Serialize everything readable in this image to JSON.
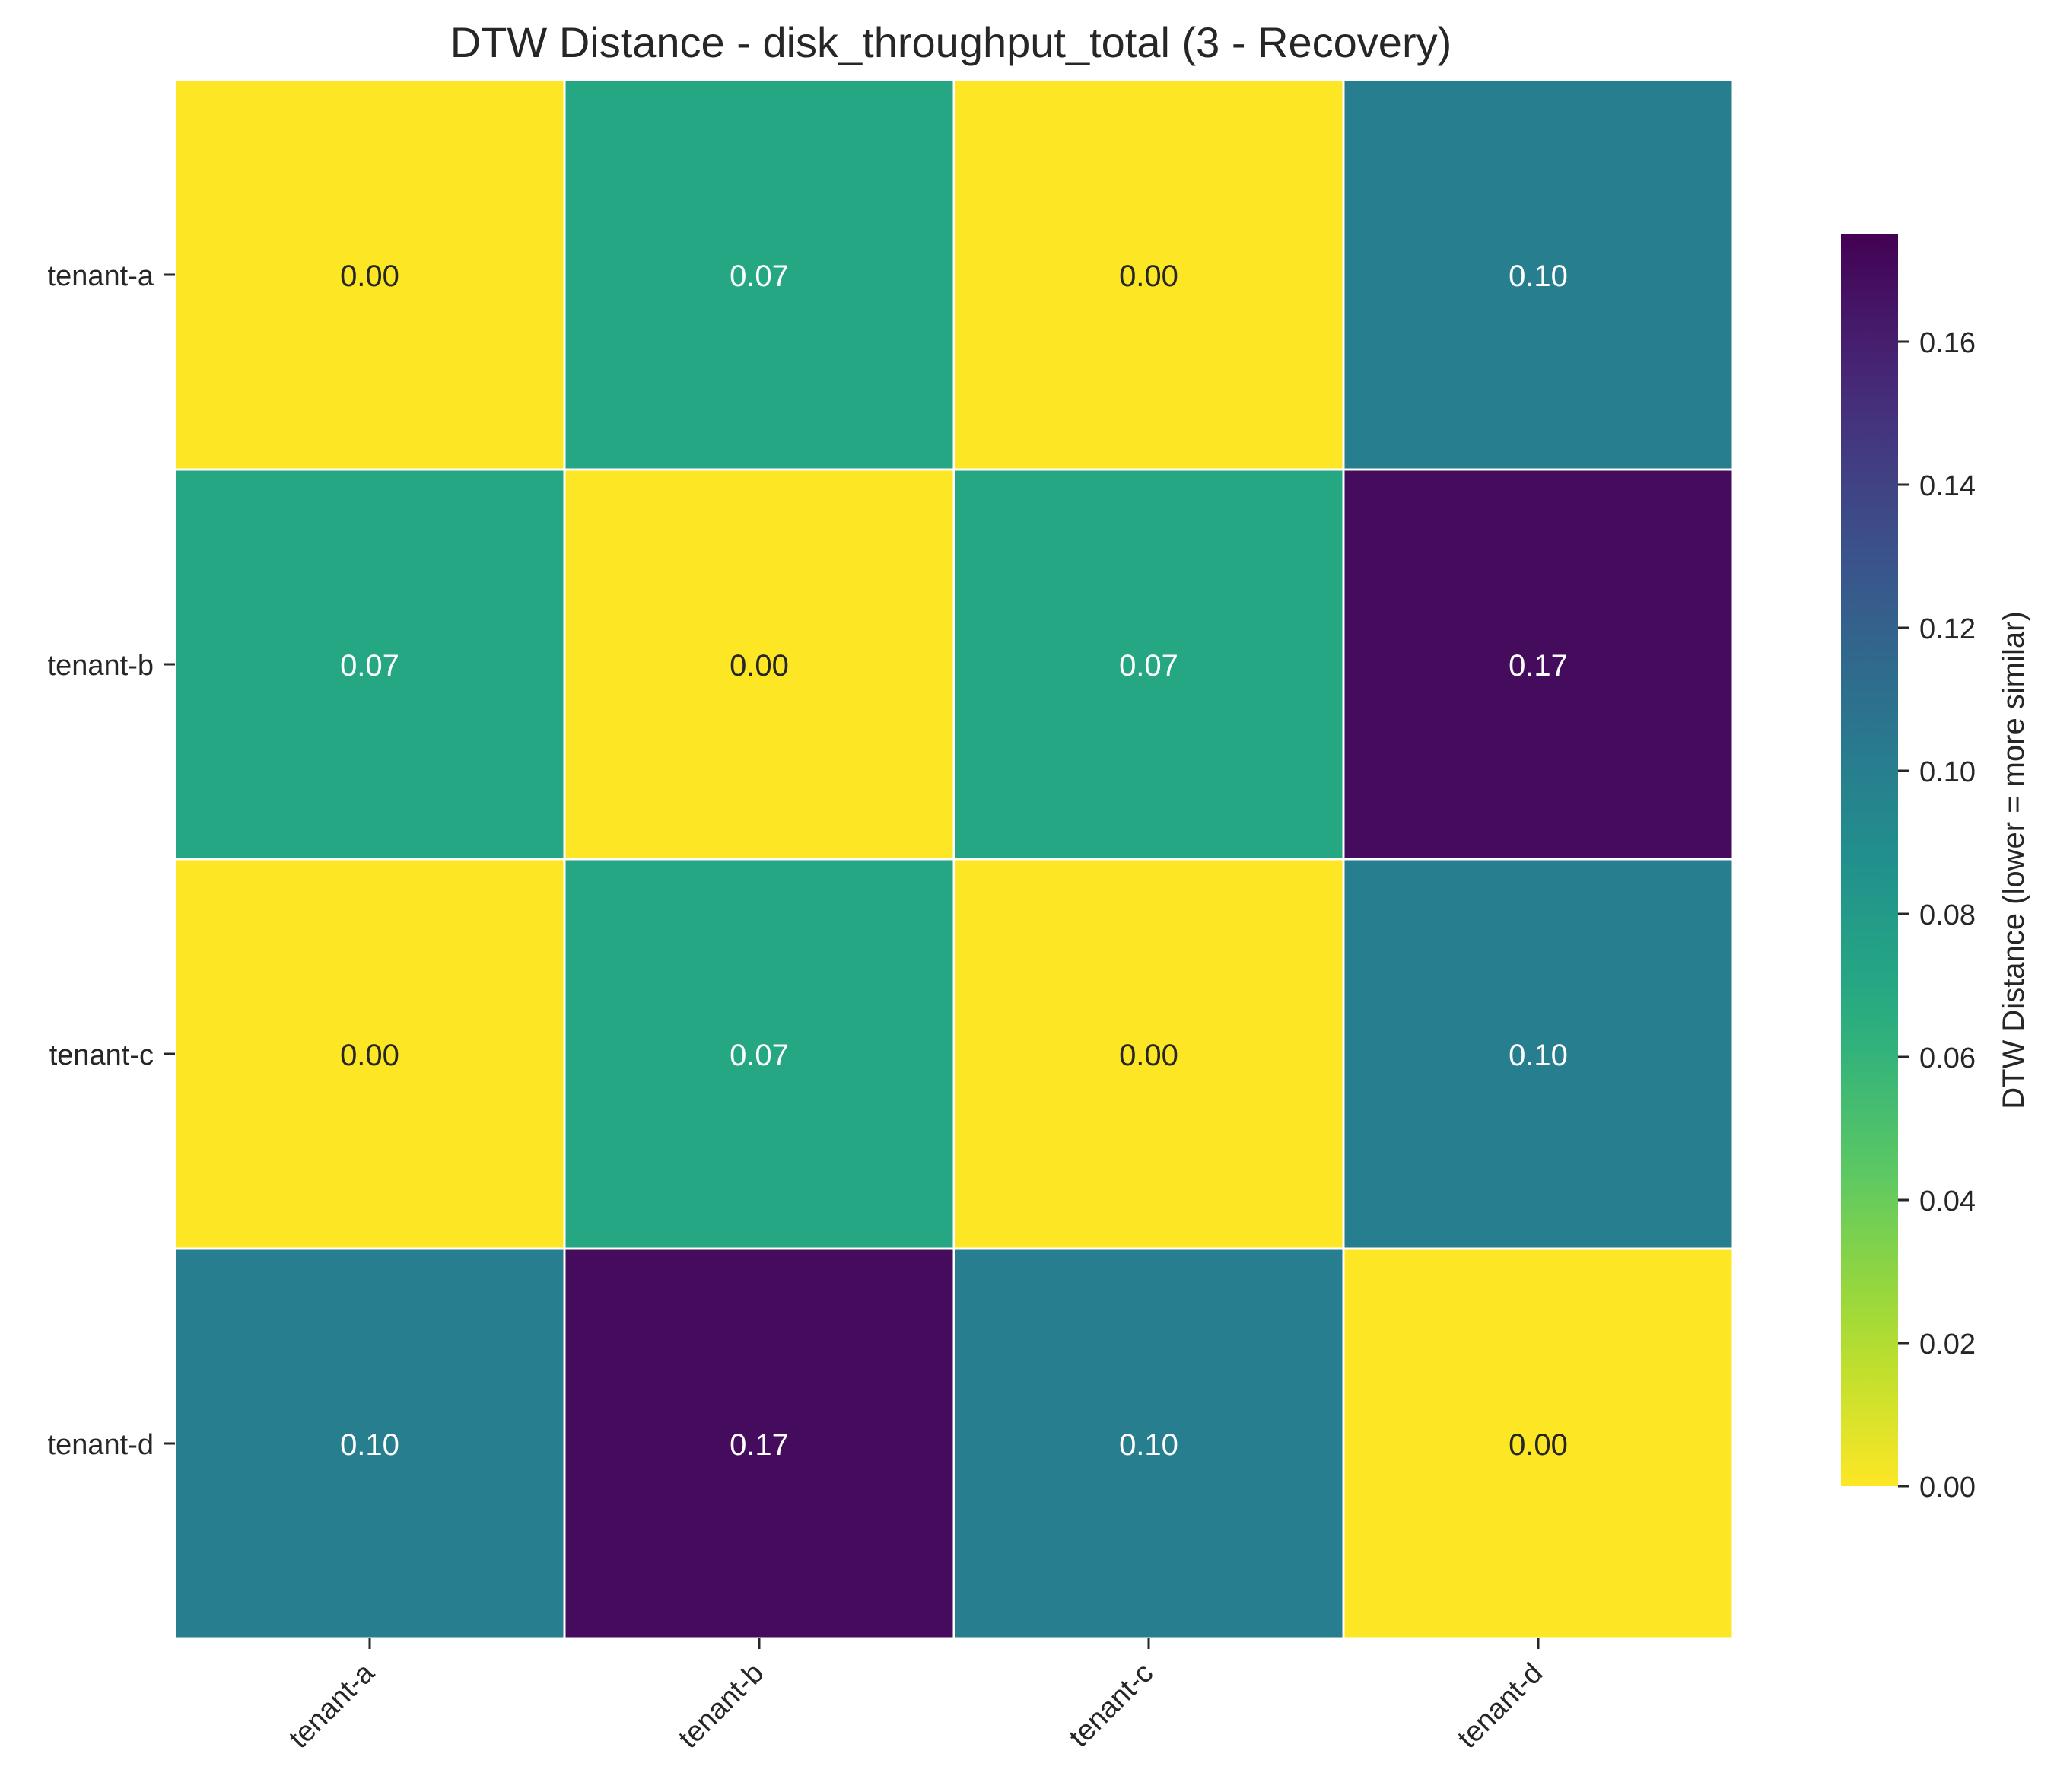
{
  "chart_data": {
    "type": "heatmap",
    "title": "DTW Distance - disk_throughput_total (3 - Recovery)",
    "rows": [
      "tenant-a",
      "tenant-b",
      "tenant-c",
      "tenant-d"
    ],
    "columns": [
      "tenant-a",
      "tenant-b",
      "tenant-c",
      "tenant-d"
    ],
    "values": [
      [
        0.0,
        0.07,
        0.0,
        0.1
      ],
      [
        0.07,
        0.0,
        0.07,
        0.17
      ],
      [
        0.0,
        0.07,
        0.0,
        0.1
      ],
      [
        0.1,
        0.17,
        0.1,
        0.0
      ]
    ],
    "cell_labels": [
      [
        "0.00",
        "0.07",
        "0.00",
        "0.10"
      ],
      [
        "0.07",
        "0.00",
        "0.07",
        "0.17"
      ],
      [
        "0.00",
        "0.07",
        "0.00",
        "0.10"
      ],
      [
        "0.10",
        "0.17",
        "0.10",
        "0.00"
      ]
    ],
    "colormap": "viridis_r",
    "colorbar": {
      "label": "DTW Distance (lower = more similar)",
      "range": [
        0.0,
        0.175
      ],
      "ticks": [
        0.0,
        0.02,
        0.04,
        0.06,
        0.08,
        0.1,
        0.12,
        0.14,
        0.16
      ],
      "tick_labels": [
        "0.00",
        "0.02",
        "0.04",
        "0.06",
        "0.08",
        "0.10",
        "0.12",
        "0.14",
        "0.16"
      ]
    },
    "grid": false
  }
}
